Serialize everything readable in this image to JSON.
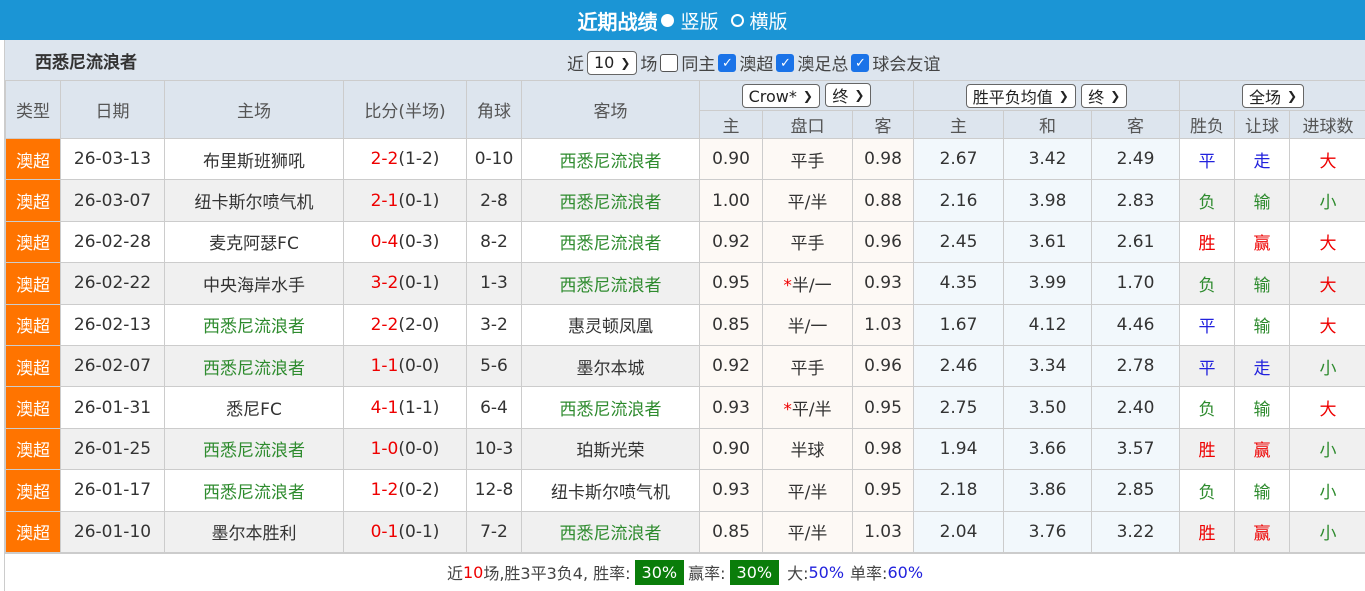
{
  "header": {
    "title": "近期战绩",
    "option_vertical": "竖版",
    "option_horizontal": "横版",
    "selected": "竖版"
  },
  "team": "西悉尼流浪者",
  "filters": {
    "near_label": "近",
    "count": "10",
    "games_label": "场",
    "same_home": "同主",
    "same_home_checked": false,
    "leagues": [
      {
        "label": "澳超",
        "checked": true
      },
      {
        "label": "澳足总",
        "checked": true
      },
      {
        "label": "球会友谊",
        "checked": true
      }
    ]
  },
  "columns": {
    "type": "类型",
    "date": "日期",
    "home": "主场",
    "score": "比分(半场)",
    "corner": "角球",
    "away": "客场",
    "asian_company": "Crow*",
    "asian_stage": "终",
    "euro_type": "胜平负均值",
    "euro_stage": "终",
    "result_scope": "全场",
    "asian_sub": [
      "主",
      "盘口",
      "客"
    ],
    "euro_sub": [
      "主",
      "和",
      "客"
    ],
    "result_sub": [
      "胜负",
      "让球",
      "进球数"
    ]
  },
  "colors": {
    "accent": "#1b95d5",
    "league": "#ff7400",
    "team_highlight": "#2e8b2e",
    "win": "#e00000",
    "draw": "#2222dd",
    "loss": "#2e8b2e"
  },
  "rows": [
    {
      "league": "澳超",
      "date": "26-03-13",
      "home": "布里斯班狮吼",
      "hl": "away",
      "score": "2-2",
      "half": "(1-2)",
      "corner": "0-10",
      "away": "西悉尼流浪者",
      "ah": "0.90",
      "line": "平手",
      "star": false,
      "aa": "0.98",
      "eh": "2.67",
      "ed": "3.42",
      "ea": "2.49",
      "wl": "平",
      "hc": "走",
      "ou": "大"
    },
    {
      "league": "澳超",
      "date": "26-03-07",
      "home": "纽卡斯尔喷气机",
      "hl": "away",
      "score": "2-1",
      "half": "(0-1)",
      "corner": "2-8",
      "away": "西悉尼流浪者",
      "ah": "1.00",
      "line": "平/半",
      "star": false,
      "aa": "0.88",
      "eh": "2.16",
      "ed": "3.98",
      "ea": "2.83",
      "wl": "负",
      "hc": "输",
      "ou": "小"
    },
    {
      "league": "澳超",
      "date": "26-02-28",
      "home": "麦克阿瑟FC",
      "hl": "away",
      "score": "0-4",
      "half": "(0-3)",
      "corner": "8-2",
      "away": "西悉尼流浪者",
      "ah": "0.92",
      "line": "平手",
      "star": false,
      "aa": "0.96",
      "eh": "2.45",
      "ed": "3.61",
      "ea": "2.61",
      "wl": "胜",
      "hc": "赢",
      "ou": "大"
    },
    {
      "league": "澳超",
      "date": "26-02-22",
      "home": "中央海岸水手",
      "hl": "away",
      "score": "3-2",
      "half": "(0-1)",
      "corner": "1-3",
      "away": "西悉尼流浪者",
      "ah": "0.95",
      "line": "半/一",
      "star": true,
      "aa": "0.93",
      "eh": "4.35",
      "ed": "3.99",
      "ea": "1.70",
      "wl": "负",
      "hc": "输",
      "ou": "大"
    },
    {
      "league": "澳超",
      "date": "26-02-13",
      "home": "西悉尼流浪者",
      "hl": "home",
      "score": "2-2",
      "half": "(2-0)",
      "corner": "3-2",
      "away": "惠灵顿凤凰",
      "ah": "0.85",
      "line": "半/一",
      "star": false,
      "aa": "1.03",
      "eh": "1.67",
      "ed": "4.12",
      "ea": "4.46",
      "wl": "平",
      "hc": "输",
      "ou": "大"
    },
    {
      "league": "澳超",
      "date": "26-02-07",
      "home": "西悉尼流浪者",
      "hl": "home",
      "score": "1-1",
      "half": "(0-0)",
      "corner": "5-6",
      "away": "墨尔本城",
      "ah": "0.92",
      "line": "平手",
      "star": false,
      "aa": "0.96",
      "eh": "2.46",
      "ed": "3.34",
      "ea": "2.78",
      "wl": "平",
      "hc": "走",
      "ou": "小"
    },
    {
      "league": "澳超",
      "date": "26-01-31",
      "home": "悉尼FC",
      "hl": "away",
      "score": "4-1",
      "half": "(1-1)",
      "corner": "6-4",
      "away": "西悉尼流浪者",
      "ah": "0.93",
      "line": "平/半",
      "star": true,
      "aa": "0.95",
      "eh": "2.75",
      "ed": "3.50",
      "ea": "2.40",
      "wl": "负",
      "hc": "输",
      "ou": "大"
    },
    {
      "league": "澳超",
      "date": "26-01-25",
      "home": "西悉尼流浪者",
      "hl": "home",
      "score": "1-0",
      "half": "(0-0)",
      "corner": "10-3",
      "away": "珀斯光荣",
      "ah": "0.90",
      "line": "半球",
      "star": false,
      "aa": "0.98",
      "eh": "1.94",
      "ed": "3.66",
      "ea": "3.57",
      "wl": "胜",
      "hc": "赢",
      "ou": "小"
    },
    {
      "league": "澳超",
      "date": "26-01-17",
      "home": "西悉尼流浪者",
      "hl": "home",
      "score": "1-2",
      "half": "(0-2)",
      "corner": "12-8",
      "away": "纽卡斯尔喷气机",
      "ah": "0.93",
      "line": "平/半",
      "star": false,
      "aa": "0.95",
      "eh": "2.18",
      "ed": "3.86",
      "ea": "2.85",
      "wl": "负",
      "hc": "输",
      "ou": "小"
    },
    {
      "league": "澳超",
      "date": "26-01-10",
      "home": "墨尔本胜利",
      "hl": "away",
      "score": "0-1",
      "half": "(0-1)",
      "corner": "7-2",
      "away": "西悉尼流浪者",
      "ah": "0.85",
      "line": "平/半",
      "star": false,
      "aa": "1.03",
      "eh": "2.04",
      "ed": "3.76",
      "ea": "3.22",
      "wl": "胜",
      "hc": "赢",
      "ou": "小"
    }
  ],
  "footer": {
    "p1": "近",
    "n": "10",
    "p2": "场,胜3平3负4, 胜率:",
    "win_rate": "30%",
    "p3": "赢率:",
    "cover_rate": "30%",
    "p4": "大:",
    "over_rate": "50%",
    "p5": "单率:",
    "odd_rate": "60%"
  }
}
